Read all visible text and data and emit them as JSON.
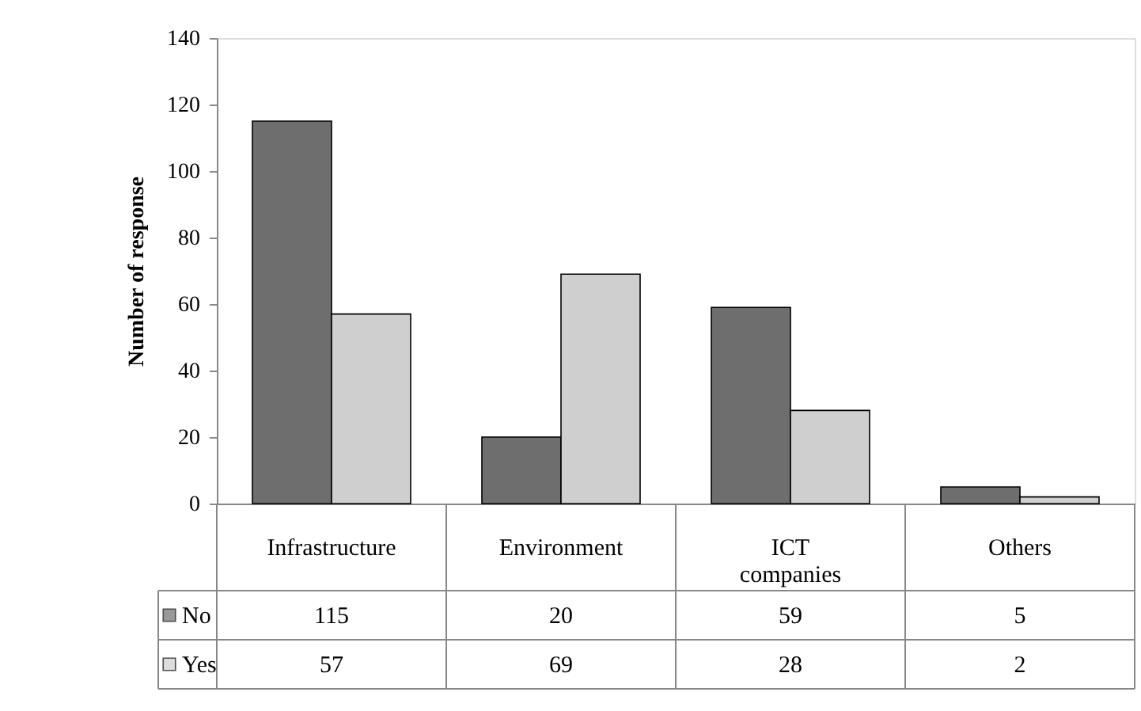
{
  "chart_data": {
    "type": "bar",
    "ylabel": "Number of  response",
    "categories": [
      "Infrastructure",
      "Environment",
      "ICT companies",
      "Others"
    ],
    "series": [
      {
        "name": "No",
        "color": "#6e6e6e",
        "values": [
          115,
          20,
          59,
          5
        ]
      },
      {
        "name": "Yes",
        "color": "#cfcfcf",
        "values": [
          57,
          69,
          28,
          2
        ]
      }
    ],
    "ylim": [
      0,
      140
    ],
    "yticks": [
      0,
      20,
      40,
      60,
      80,
      100,
      120,
      140
    ],
    "grid": false,
    "legend": "bottom",
    "data_labels": true
  }
}
